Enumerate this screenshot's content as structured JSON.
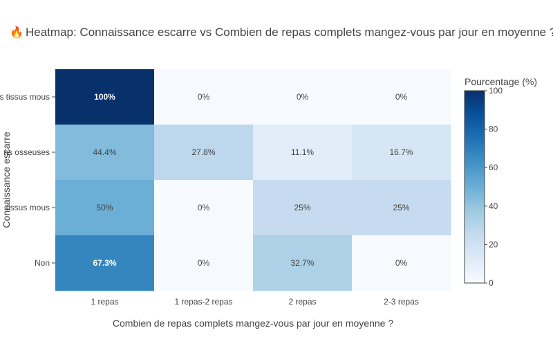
{
  "title": {
    "icon": "fire-icon",
    "icon_glyph": "🔥",
    "text": "Heatmap: Connaissance escarre vs Combien de repas complets mangez-vous par jour en moyenne ? (%)"
  },
  "chart_data": {
    "type": "heatmap",
    "title": "Heatmap: Connaissance escarre vs Combien de repas complets mangez-vous par jour en moyenne ? (%)",
    "xlabel": "Combien de repas complets mangez-vous par jour en moyenne ?",
    "ylabel": "Connaissance escarre",
    "x_categories": [
      "1 repas",
      "1 repas-2 repas",
      "2 repas",
      "2-3 repas"
    ],
    "y_categories": [
      "s tissus mous",
      "ns osseuses",
      "tissus mous",
      "Non"
    ],
    "values": [
      [
        100,
        0,
        0,
        0
      ],
      [
        44.4,
        27.8,
        11.1,
        16.7
      ],
      [
        50,
        0,
        25,
        25
      ],
      [
        67.3,
        0,
        32.7,
        0
      ]
    ],
    "labels": [
      [
        "100%",
        "0%",
        "0%",
        "0%"
      ],
      [
        "44.4%",
        "27.8%",
        "11.1%",
        "16.7%"
      ],
      [
        "50%",
        "0%",
        "25%",
        "25%"
      ],
      [
        "67.3%",
        "0%",
        "32.7%",
        "0%"
      ]
    ],
    "colorscale": "Blues",
    "colorbar": {
      "title": "Pourcentage (%)",
      "range": [
        0,
        100
      ],
      "ticks": [
        0,
        20,
        40,
        60,
        80,
        100
      ]
    }
  }
}
